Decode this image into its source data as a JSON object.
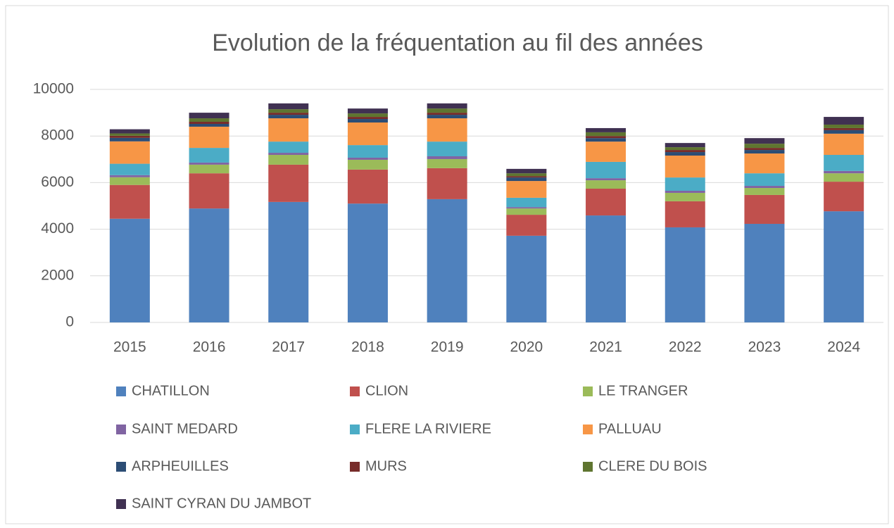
{
  "chart_data": {
    "type": "stacked_bar",
    "title": "Evolution de la fréquentation au fil des années",
    "categories": [
      "2015",
      "2016",
      "2017",
      "2018",
      "2019",
      "2020",
      "2021",
      "2022",
      "2023",
      "2024"
    ],
    "series": [
      {
        "name": "CHATILLON",
        "color": "#4f81bd",
        "values": [
          4450,
          4890,
          5170,
          5100,
          5290,
          3720,
          4590,
          4080,
          4230,
          4770
        ]
      },
      {
        "name": "CLION",
        "color": "#c0504d",
        "values": [
          1450,
          1510,
          1600,
          1460,
          1330,
          900,
          1150,
          1120,
          1240,
          1270
        ]
      },
      {
        "name": "LE TRANGER",
        "color": "#9bbb59",
        "values": [
          330,
          370,
          420,
          420,
          390,
          270,
          360,
          360,
          300,
          360
        ]
      },
      {
        "name": "SAINT MEDARD",
        "color": "#8064a2",
        "values": [
          90,
          90,
          90,
          90,
          120,
          60,
          90,
          90,
          90,
          100
        ]
      },
      {
        "name": "FLERE LA RIVIERE",
        "color": "#4bacc6",
        "values": [
          490,
          630,
          480,
          540,
          630,
          400,
          700,
          570,
          540,
          690
        ]
      },
      {
        "name": "PALLUAU",
        "color": "#f79646",
        "values": [
          960,
          910,
          1000,
          970,
          1000,
          720,
          870,
          940,
          850,
          910
        ]
      },
      {
        "name": "ARPHEUILLES",
        "color": "#2c4d75",
        "values": [
          150,
          120,
          150,
          150,
          150,
          150,
          150,
          150,
          150,
          150
        ]
      },
      {
        "name": "MURS",
        "color": "#772c2a",
        "values": [
          90,
          90,
          90,
          90,
          90,
          60,
          90,
          90,
          90,
          90
        ]
      },
      {
        "name": "CLERE DU BOIS",
        "color": "#5f7530",
        "values": [
          100,
          150,
          150,
          150,
          180,
          120,
          160,
          120,
          180,
          150
        ]
      },
      {
        "name": "SAINT CYRAN DU JAMBOT",
        "color": "#403152",
        "values": [
          180,
          240,
          250,
          210,
          220,
          190,
          180,
          180,
          240,
          330
        ]
      }
    ],
    "ylim": [
      0,
      10000
    ],
    "yticks": [
      0,
      2000,
      4000,
      6000,
      8000,
      10000
    ],
    "grid": true
  }
}
